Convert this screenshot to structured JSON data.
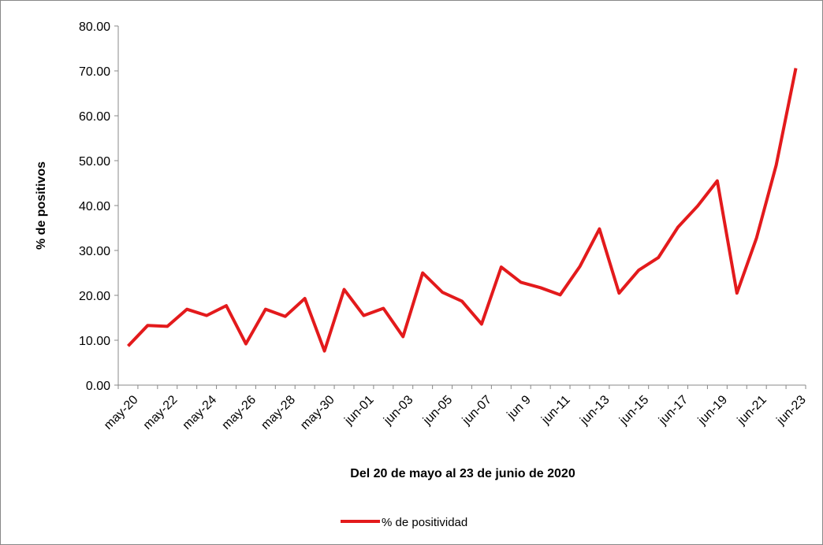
{
  "chart_data": {
    "type": "line",
    "xlabel": "Del 20 de mayo al 23 de junio de 2020",
    "ylabel": "% de positivos",
    "categories": [
      "may-20",
      null,
      "may-22",
      null,
      "may-24",
      null,
      "may-26",
      null,
      "may-28",
      null,
      "may-30",
      null,
      "jun-01",
      null,
      "jun-03",
      null,
      "jun-05",
      null,
      "jun-07",
      null,
      "jun 9",
      null,
      "jun-11",
      null,
      "jun-13",
      null,
      "jun-15",
      null,
      "jun-17",
      null,
      "jun-19",
      null,
      "jun-21",
      null,
      "jun-23"
    ],
    "series": [
      {
        "name": "% de positividad",
        "color": "#e31a1c",
        "values": [
          8.7,
          13.3,
          13.1,
          16.9,
          15.5,
          17.7,
          9.2,
          16.9,
          15.3,
          19.3,
          7.6,
          21.3,
          15.5,
          17.1,
          10.8,
          25.0,
          20.7,
          18.7,
          13.6,
          26.3,
          22.9,
          21.7,
          20.1,
          26.4,
          34.8,
          20.5,
          25.6,
          28.4,
          35.2,
          39.9,
          45.5,
          20.5,
          32.8,
          49.0,
          70.6
        ]
      }
    ],
    "ylim": [
      0,
      80
    ],
    "yticks": [
      {
        "value": 0,
        "label": "0.00"
      },
      {
        "value": 10,
        "label": "10.00"
      },
      {
        "value": 20,
        "label": "20.00"
      },
      {
        "value": 30,
        "label": "30.00"
      },
      {
        "value": 40,
        "label": "40.00"
      },
      {
        "value": 50,
        "label": "50.00"
      },
      {
        "value": 60,
        "label": "60.00"
      },
      {
        "value": 70,
        "label": "70.00"
      },
      {
        "value": 80,
        "label": "80.00"
      }
    ],
    "legend": "bottom"
  }
}
